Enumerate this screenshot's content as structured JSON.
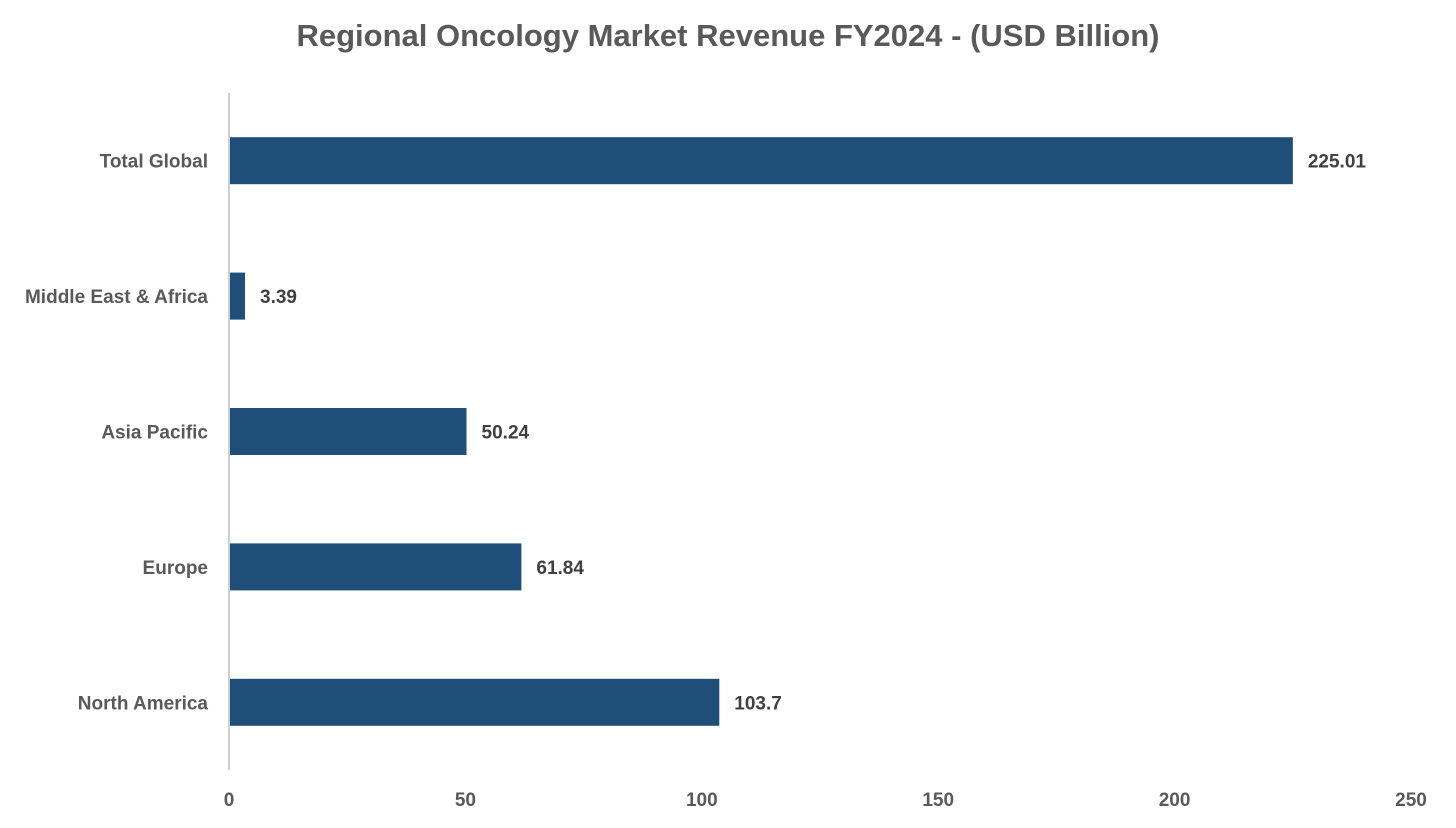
{
  "chart_data": {
    "type": "bar",
    "orientation": "horizontal",
    "title": "Regional Oncology Market Revenue FY2024 - (USD Billion)",
    "xlabel": "",
    "ylabel": "",
    "categories": [
      "Total Global",
      "Middle East & Africa",
      "Asia Pacific",
      "Europe",
      "North America"
    ],
    "values": [
      225.01,
      3.39,
      50.24,
      61.84,
      103.7
    ],
    "data_labels": [
      "225.01",
      "3.39",
      "50.24",
      "61.84",
      "103.7"
    ],
    "xlim": [
      0,
      250
    ],
    "x_ticks": [
      0,
      50,
      100,
      150,
      200,
      250
    ],
    "grid": false,
    "legend": "none",
    "bar_color": "#1F4E79"
  }
}
